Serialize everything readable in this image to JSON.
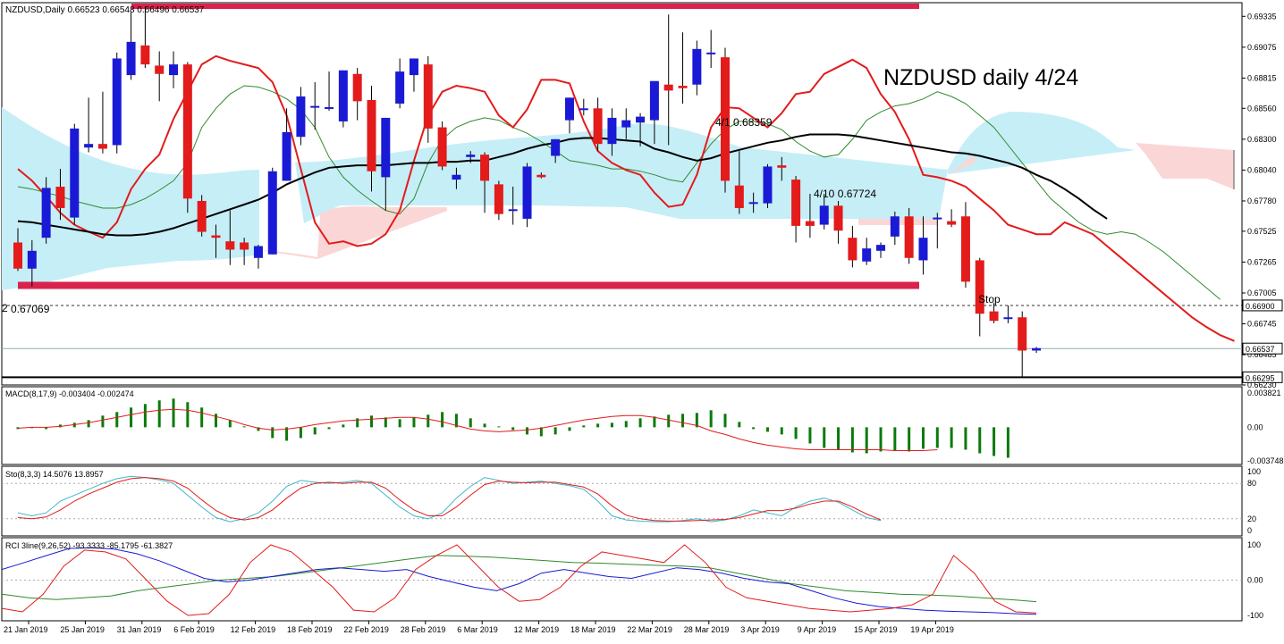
{
  "colors": {
    "bull": "#1a1ad6",
    "bear": "#e31b1b",
    "kumo_bull": "#c6eef7",
    "kumo_bear": "#fbd6d6",
    "level_bar": "#d9224c",
    "sma": "#000000",
    "tenkan": "#e31b1b",
    "kijun": "#2e8b2e",
    "macd_hist": "#0a7a0a",
    "macd_signal": "#e31b1b",
    "sto_main": "#3fb7c7",
    "sto_signal": "#e31b1b",
    "rci_short": "#e31b1b",
    "rci_mid": "#1a1ad6",
    "rci_long": "#2e8b2e"
  },
  "header": {
    "symbol_info": "NZDUSD,Daily  0.66523 0.66548 0.66496 0.66537",
    "title": "NZDUSD daily 4/24"
  },
  "annotations": {
    "high_label": "4/1 0.68359",
    "low_label": "4/10 0.67724",
    "stop_label": "Stop",
    "left_level_label": "0.67069"
  },
  "price_axis": {
    "ticks": [
      "0.69335",
      "0.69075",
      "0.68815",
      "0.68560",
      "0.68300",
      "0.68040",
      "0.67780",
      "0.67525",
      "0.67265",
      "0.67005",
      "0.66745",
      "0.66485",
      "0.66230"
    ],
    "boxes": [
      {
        "label": "0.66900",
        "value": 0.669
      },
      {
        "label": "0.66537",
        "value": 0.66537
      },
      {
        "label": "0.66295",
        "value": 0.66295
      }
    ]
  },
  "macd_panel": {
    "label": "MACD(8,17,9) -0.003404 -0.002474",
    "ticks": [
      "0.003821",
      "0.00",
      "-0.003748"
    ]
  },
  "sto_panel": {
    "label": "Sto(8,3,3) 14.5076 13.8957",
    "ticks": [
      "100",
      "80",
      "20",
      "0"
    ]
  },
  "rci_panel": {
    "label": "RCI 3line(9,26,52) -93.3333 -85.1795 -61.3827",
    "ticks": [
      "100",
      "0.00",
      "-100"
    ]
  },
  "x_axis": {
    "labels": [
      "21 Jan 2019",
      "25 Jan 2019",
      "31 Jan 2019",
      "6 Feb 2019",
      "12 Feb 2019",
      "18 Feb 2019",
      "22 Feb 2019",
      "28 Feb 2019",
      "6 Mar 2019",
      "12 Mar 2019",
      "18 Mar 2019",
      "22 Mar 2019",
      "28 Mar 2019",
      "3 Apr 2019",
      "9 Apr 2019",
      "15 Apr 2019",
      "19 Apr 2019"
    ]
  },
  "chart_data": {
    "type": "candlestick",
    "symbol": "NZDUSD",
    "timeframe": "Daily",
    "ylim": [
      0.6623,
      0.6945
    ],
    "levels": {
      "resistance": 0.6942,
      "support": 0.67069,
      "stop": 0.669,
      "bid": 0.66537,
      "low": 0.66295
    },
    "candles": [
      [
        0.6743,
        0.6755,
        0.6719,
        0.6721
      ],
      [
        0.6721,
        0.6745,
        0.6706,
        0.6736
      ],
      [
        0.6747,
        0.6798,
        0.6742,
        0.6789
      ],
      [
        0.679,
        0.6805,
        0.6762,
        0.6772
      ],
      [
        0.6764,
        0.6843,
        0.6758,
        0.6839
      ],
      [
        0.6823,
        0.6865,
        0.6819,
        0.6826
      ],
      [
        0.6826,
        0.687,
        0.6818,
        0.6822
      ],
      [
        0.6825,
        0.6903,
        0.6818,
        0.6898
      ],
      [
        0.6884,
        0.6937,
        0.688,
        0.6912
      ],
      [
        0.6909,
        0.6942,
        0.689,
        0.6893
      ],
      [
        0.6892,
        0.6904,
        0.6862,
        0.6885
      ],
      [
        0.6884,
        0.6904,
        0.6873,
        0.6893
      ],
      [
        0.6893,
        0.6895,
        0.6768,
        0.678
      ],
      [
        0.6778,
        0.6783,
        0.6748,
        0.6752
      ],
      [
        0.6749,
        0.6758,
        0.673,
        0.6747
      ],
      [
        0.6744,
        0.677,
        0.6724,
        0.6737
      ],
      [
        0.6743,
        0.6747,
        0.6724,
        0.6737
      ],
      [
        0.673,
        0.6741,
        0.6721,
        0.674
      ],
      [
        0.6733,
        0.6806,
        0.6733,
        0.6803
      ],
      [
        0.6795,
        0.6856,
        0.6795,
        0.6836
      ],
      [
        0.6832,
        0.6874,
        0.6825,
        0.6866
      ],
      [
        0.6857,
        0.6878,
        0.6838,
        0.6858
      ],
      [
        0.6857,
        0.6887,
        0.6854,
        0.6857
      ],
      [
        0.6845,
        0.6888,
        0.684,
        0.6888
      ],
      [
        0.6885,
        0.689,
        0.6846,
        0.6862
      ],
      [
        0.6863,
        0.6875,
        0.6786,
        0.6803
      ],
      [
        0.6798,
        0.6848,
        0.677,
        0.6848
      ],
      [
        0.686,
        0.6898,
        0.6856,
        0.6887
      ],
      [
        0.6884,
        0.6898,
        0.687,
        0.6898
      ],
      [
        0.6893,
        0.69,
        0.6827,
        0.6839
      ],
      [
        0.684,
        0.6845,
        0.6804,
        0.6807
      ],
      [
        0.6796,
        0.6806,
        0.6788,
        0.68
      ],
      [
        0.6815,
        0.682,
        0.681,
        0.6817
      ],
      [
        0.6817,
        0.6819,
        0.6768,
        0.6795
      ],
      [
        0.6792,
        0.6795,
        0.6762,
        0.6767
      ],
      [
        0.6771,
        0.679,
        0.6758,
        0.6771
      ],
      [
        0.6763,
        0.681,
        0.6756,
        0.6807
      ],
      [
        0.68,
        0.6802,
        0.6797,
        0.6798
      ],
      [
        0.6816,
        0.683,
        0.681,
        0.683
      ],
      [
        0.6846,
        0.6865,
        0.6835,
        0.6865
      ],
      [
        0.6856,
        0.6864,
        0.685,
        0.6856
      ],
      [
        0.6856,
        0.6865,
        0.682,
        0.6826
      ],
      [
        0.6826,
        0.6856,
        0.6816,
        0.6848
      ],
      [
        0.684,
        0.6856,
        0.683,
        0.6846
      ],
      [
        0.6844,
        0.6852,
        0.6824,
        0.6849
      ],
      [
        0.6846,
        0.6878,
        0.6826,
        0.6879
      ],
      [
        0.6876,
        0.6935,
        0.6825,
        0.6871
      ],
      [
        0.6875,
        0.692,
        0.686,
        0.6873
      ],
      [
        0.6876,
        0.6913,
        0.6867,
        0.6906
      ],
      [
        0.6903,
        0.6922,
        0.689,
        0.6903
      ],
      [
        0.6899,
        0.6907,
        0.6785,
        0.6795
      ],
      [
        0.6791,
        0.682,
        0.6767,
        0.6772
      ],
      [
        0.6777,
        0.6785,
        0.6768,
        0.6777
      ],
      [
        0.6776,
        0.6809,
        0.6772,
        0.6807
      ],
      [
        0.6808,
        0.6815,
        0.6795,
        0.6806
      ],
      [
        0.6796,
        0.6799,
        0.6743,
        0.6757
      ],
      [
        0.6761,
        0.6784,
        0.6747,
        0.6757
      ],
      [
        0.6758,
        0.6784,
        0.6754,
        0.6774
      ],
      [
        0.6774,
        0.6778,
        0.6742,
        0.6753
      ],
      [
        0.6747,
        0.6757,
        0.6722,
        0.6728
      ],
      [
        0.6727,
        0.6747,
        0.6724,
        0.6738
      ],
      [
        0.6736,
        0.6743,
        0.673,
        0.6741
      ],
      [
        0.6748,
        0.6769,
        0.6741,
        0.6765
      ],
      [
        0.6765,
        0.6772,
        0.6725,
        0.673
      ],
      [
        0.6728,
        0.6765,
        0.6716,
        0.6747
      ],
      [
        0.6763,
        0.6768,
        0.6738,
        0.6764
      ],
      [
        0.6761,
        0.6771,
        0.6756,
        0.6758
      ],
      [
        0.6765,
        0.6777,
        0.6705,
        0.671
      ],
      [
        0.6728,
        0.673,
        0.6664,
        0.6683
      ],
      [
        0.6685,
        0.6692,
        0.6675,
        0.6677
      ],
      [
        0.668,
        0.669,
        0.6675,
        0.668
      ],
      [
        0.668,
        0.6685,
        0.6629,
        0.6652
      ],
      [
        0.6652,
        0.6655,
        0.665,
        0.6654
      ]
    ],
    "series": [
      {
        "name": "SMA",
        "values": [
          0.6761,
          0.676,
          0.6758,
          0.6756,
          0.6754,
          0.6752,
          0.675,
          0.6749,
          0.6749,
          0.675,
          0.6752,
          0.6755,
          0.6759,
          0.6763,
          0.6767,
          0.6771,
          0.6775,
          0.6779,
          0.6785,
          0.6792,
          0.6797,
          0.6802,
          0.6806,
          0.6807,
          0.6808,
          0.6808,
          0.6808,
          0.6809,
          0.681,
          0.681,
          0.6811,
          0.6811,
          0.6812,
          0.6812,
          0.6815,
          0.6818,
          0.6822,
          0.6825,
          0.6827,
          0.683,
          0.6831,
          0.6831,
          0.683,
          0.6829,
          0.6828,
          0.6822,
          0.6819,
          0.6815,
          0.6812,
          0.6814,
          0.6818,
          0.6821,
          0.6824,
          0.6827,
          0.6829,
          0.6832,
          0.6834,
          0.6834,
          0.6834,
          0.6833,
          0.6831,
          0.6829,
          0.6827,
          0.6825,
          0.6823,
          0.6821,
          0.6819,
          0.6818,
          0.6816,
          0.6813,
          0.681,
          0.6806,
          0.68,
          0.6795,
          0.6788,
          0.678,
          0.6771,
          0.6763
        ]
      },
      {
        "name": "Tenkan",
        "values": [
          0.6805,
          0.6795,
          0.6782,
          0.6768,
          0.6758,
          0.6752,
          0.6747,
          0.676,
          0.6788,
          0.6805,
          0.6817,
          0.6847,
          0.687,
          0.6893,
          0.69,
          0.6896,
          0.6893,
          0.689,
          0.6878,
          0.685,
          0.6805,
          0.676,
          0.6742,
          0.6744,
          0.674,
          0.6742,
          0.675,
          0.677,
          0.6812,
          0.685,
          0.687,
          0.6875,
          0.6873,
          0.687,
          0.685,
          0.684,
          0.6855,
          0.688,
          0.688,
          0.6877,
          0.6845,
          0.682,
          0.681,
          0.6804,
          0.68,
          0.6785,
          0.6773,
          0.6775,
          0.68,
          0.684,
          0.6857,
          0.6856,
          0.6848,
          0.684,
          0.6852,
          0.6868,
          0.687,
          0.6885,
          0.6891,
          0.6897,
          0.689,
          0.6868,
          0.6853,
          0.683,
          0.68,
          0.6798,
          0.6795,
          0.679,
          0.678,
          0.677,
          0.6758,
          0.6754,
          0.675,
          0.675,
          0.676,
          0.6755,
          0.675,
          0.674,
          0.673,
          0.672,
          0.671,
          0.67,
          0.669,
          0.668,
          0.6672,
          0.6665,
          0.666
        ]
      },
      {
        "name": "Kijun",
        "values": [
          0.679,
          0.6788,
          0.6785,
          0.6782,
          0.6778,
          0.6775,
          0.6772,
          0.6772,
          0.6775,
          0.678,
          0.6787,
          0.6795,
          0.681,
          0.684,
          0.6856,
          0.6868,
          0.6875,
          0.6874,
          0.687,
          0.6864,
          0.6855,
          0.684,
          0.6815,
          0.6798,
          0.6787,
          0.6778,
          0.677,
          0.6767,
          0.678,
          0.681,
          0.683,
          0.684,
          0.6845,
          0.6848,
          0.6846,
          0.684,
          0.6835,
          0.6828,
          0.682,
          0.6812,
          0.681,
          0.6808,
          0.6805,
          0.6805,
          0.6803,
          0.68,
          0.6796,
          0.6794,
          0.681,
          0.6826,
          0.6838,
          0.6845,
          0.6845,
          0.6843,
          0.6838,
          0.6828,
          0.682,
          0.6815,
          0.6817,
          0.683,
          0.6846,
          0.6853,
          0.6858,
          0.686,
          0.6864,
          0.687,
          0.6866,
          0.686,
          0.685,
          0.684,
          0.6825,
          0.681,
          0.6795,
          0.678,
          0.677,
          0.676,
          0.6753,
          0.675,
          0.6752,
          0.675,
          0.6743,
          0.6735,
          0.6725,
          0.6715,
          0.6705,
          0.6695
        ]
      }
    ],
    "macd": {
      "histogram": [
        -0.0002,
        -0.0001,
        -0.0002,
        0.0003,
        0.0005,
        0.0008,
        0.0013,
        0.0017,
        0.0022,
        0.0026,
        0.003,
        0.0032,
        0.0028,
        0.0022,
        0.0015,
        0.0008,
        0.0001,
        -0.0004,
        -0.0012,
        -0.0015,
        -0.0012,
        -0.0008,
        -0.0002,
        0.0003,
        0.001,
        0.0013,
        0.0011,
        0.0009,
        0.0011,
        0.0014,
        0.0017,
        0.0015,
        0.001,
        0.0004,
        0.0001,
        -0.0003,
        -0.0008,
        -0.001,
        -0.0008,
        -0.0004,
        0.0002,
        0.0004,
        0.0005,
        0.0007,
        0.001,
        0.0012,
        0.0014,
        0.0015,
        0.0016,
        0.0019,
        0.0015,
        0.0006,
        -0.0002,
        -0.0005,
        -0.0008,
        -0.0013,
        -0.0018,
        -0.0023,
        -0.0025,
        -0.0028,
        -0.0029,
        -0.0027,
        -0.0026,
        -0.0027,
        -0.0024,
        -0.0023,
        -0.0023,
        -0.0025,
        -0.0029,
        -0.0032,
        -0.0034
      ],
      "signal": [
        -0.0001,
        0.0,
        0.0,
        0.0001,
        0.0003,
        0.0005,
        0.0008,
        0.0011,
        0.0014,
        0.0017,
        0.0019,
        0.002,
        0.0019,
        0.0016,
        0.0012,
        0.0008,
        0.0003,
        -0.0001,
        -0.0003,
        -0.0002,
        0.0,
        0.0003,
        0.0005,
        0.0007,
        0.0008,
        0.0009,
        0.001,
        0.0011,
        0.0011,
        0.0009,
        0.0006,
        0.0002,
        -0.0002,
        -0.0004,
        -0.0005,
        -0.0004,
        -0.0003,
        -0.0001,
        0.0002,
        0.0005,
        0.0008,
        0.001,
        0.0012,
        0.0013,
        0.0013,
        0.0011,
        0.0008,
        0.0005,
        0.0002,
        -0.0004,
        -0.0008,
        -0.0013,
        -0.0017,
        -0.002,
        -0.0022,
        -0.0024,
        -0.0025,
        -0.0025,
        -0.0025,
        -0.0025,
        -0.0025,
        -0.0025,
        -0.0026,
        -0.0026,
        -0.0026,
        -0.0025
      ]
    },
    "stochastic": {
      "main": [
        30,
        25,
        30,
        50,
        60,
        70,
        80,
        88,
        92,
        90,
        86,
        80,
        60,
        40,
        22,
        15,
        20,
        30,
        50,
        75,
        85,
        82,
        80,
        82,
        85,
        80,
        60,
        40,
        25,
        20,
        30,
        55,
        75,
        90,
        85,
        80,
        82,
        84,
        80,
        76,
        70,
        50,
        25,
        18,
        16,
        15,
        15,
        17,
        20,
        15,
        18,
        25,
        35,
        30,
        25,
        40,
        50,
        55,
        48,
        35,
        22,
        17
      ],
      "signal": [
        22,
        20,
        23,
        35,
        50,
        62,
        72,
        82,
        88,
        90,
        88,
        84,
        72,
        52,
        34,
        22,
        18,
        22,
        35,
        55,
        72,
        80,
        82,
        80,
        82,
        82,
        72,
        52,
        35,
        25,
        25,
        40,
        60,
        78,
        84,
        82,
        81,
        82,
        82,
        78,
        74,
        62,
        42,
        26,
        20,
        17,
        16,
        16,
        17,
        18,
        19,
        22,
        28,
        34,
        34,
        38,
        45,
        50,
        50,
        40,
        28,
        18
      ]
    },
    "rci": {
      "short": [
        -80,
        -90,
        -40,
        40,
        85,
        80,
        60,
        0,
        -60,
        -100,
        -95,
        -40,
        50,
        100,
        80,
        30,
        -20,
        -85,
        -90,
        -50,
        30,
        70,
        100,
        40,
        -20,
        -60,
        -55,
        -20,
        40,
        80,
        70,
        60,
        50,
        100,
        50,
        -20,
        -50,
        -60,
        -70,
        -80,
        -85,
        -90,
        -85,
        -80,
        -70,
        -40,
        70,
        20,
        -60,
        -90,
        -93
      ],
      "mid": [
        30,
        50,
        70,
        90,
        92,
        88,
        75,
        55,
        30,
        5,
        -5,
        0,
        10,
        20,
        30,
        35,
        30,
        25,
        30,
        10,
        -5,
        -20,
        -30,
        -10,
        20,
        30,
        20,
        10,
        5,
        20,
        35,
        30,
        20,
        5,
        -5,
        -10,
        -30,
        -50,
        -65,
        -75,
        -80,
        -85,
        -88,
        -90,
        -92,
        -95,
        -97
      ],
      "long": [
        -40,
        -50,
        -55,
        -50,
        -45,
        -30,
        -20,
        -10,
        0,
        5,
        10,
        20,
        30,
        40,
        50,
        60,
        70,
        68,
        65,
        60,
        55,
        50,
        48,
        45,
        42,
        40,
        35,
        20,
        5,
        -10,
        -20,
        -30,
        -35,
        -40,
        -42,
        -45,
        -50,
        -55,
        -61
      ]
    }
  }
}
